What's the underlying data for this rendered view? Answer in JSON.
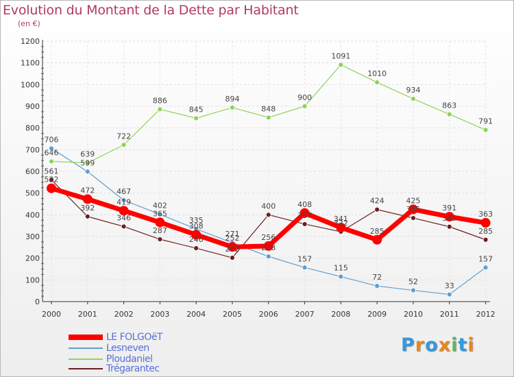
{
  "title": "Evolution du Montant de la Dette par Habitant",
  "unit_label": "(en €)",
  "logo": {
    "text": "Proxiti",
    "letters": [
      {
        "ch": "P",
        "color": "#3399dd"
      },
      {
        "ch": "r",
        "color": "#e8861a"
      },
      {
        "ch": "o",
        "color": "#3399dd"
      },
      {
        "ch": "x",
        "color": "#e8861a"
      },
      {
        "ch": "i",
        "color": "#5cb85c"
      },
      {
        "ch": "t",
        "color": "#3399dd"
      },
      {
        "ch": "i",
        "color": "#e8861a"
      }
    ]
  },
  "chart_data": {
    "type": "line",
    "x": [
      "2000",
      "2001",
      "2002",
      "2003",
      "2004",
      "2005",
      "2006",
      "2007",
      "2008",
      "2009",
      "2010",
      "2011",
      "2012"
    ],
    "ylim": [
      0,
      1200
    ],
    "yticks": [
      "0",
      "100",
      "200",
      "300",
      "400",
      "500",
      "600",
      "700",
      "800",
      "900",
      "1000",
      "1100",
      "1200"
    ],
    "grid": true,
    "legend_position": "bottom-left",
    "series": [
      {
        "name": "LE FOLGOëT",
        "color": "#ff0000",
        "values": [
          522,
          472,
          419,
          365,
          308,
          252,
          256,
          408,
          341,
          285,
          425,
          391,
          363
        ]
      },
      {
        "name": "Lesneven",
        "color": "#5f9ecf",
        "values": [
          706,
          599,
          467,
          402,
          335,
          271,
          208,
          157,
          115,
          72,
          52,
          33,
          157
        ]
      },
      {
        "name": "Ploudaniel",
        "color": "#8ed257",
        "values": [
          646,
          639,
          722,
          886,
          845,
          894,
          848,
          900,
          1091,
          1010,
          934,
          863,
          791
        ]
      },
      {
        "name": "Trégarantec",
        "color": "#6e1d1d",
        "values": [
          561,
          392,
          346,
          287,
          246,
          202,
          400,
          357,
          322,
          424,
          385,
          345,
          285
        ]
      }
    ]
  }
}
